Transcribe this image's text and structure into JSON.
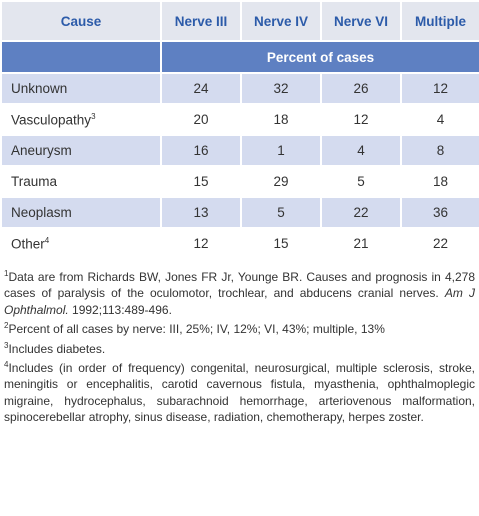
{
  "table": {
    "header": [
      "Cause",
      "Nerve III",
      "Nerve IV",
      "Nerve VI",
      "Multiple"
    ],
    "subheader": "Percent of cases",
    "rows": [
      {
        "cause": "Unknown",
        "values": [
          24,
          32,
          26,
          12
        ]
      },
      {
        "cause": "Vasculopathy",
        "note": "3",
        "values": [
          20,
          18,
          12,
          4
        ]
      },
      {
        "cause": "Aneurysm",
        "values": [
          16,
          1,
          4,
          8
        ]
      },
      {
        "cause": "Trauma",
        "values": [
          15,
          29,
          5,
          18
        ]
      },
      {
        "cause": "Neoplasm",
        "values": [
          13,
          5,
          22,
          36
        ]
      },
      {
        "cause": "Other",
        "note": "4",
        "values": [
          12,
          15,
          21,
          22
        ]
      }
    ]
  },
  "footnotes": [
    {
      "marker": "1",
      "parts": [
        "Data are from Richards BW, Jones FR Jr, Younge BR. Causes and prognosis in 4,278 cases of paralysis of the oculomotor, trochlear, and abducens cranial nerves. ",
        "Am J Ophthalmol.",
        " 1992;113:489-496."
      ]
    },
    {
      "marker": "2",
      "parts": [
        "Percent of all cases by nerve: III, 25%; IV, 12%; VI, 43%; multiple, 13%"
      ]
    },
    {
      "marker": "3",
      "parts": [
        "Includes diabetes."
      ]
    },
    {
      "marker": "4",
      "parts": [
        "Includes (in order of frequency) congenital, neurosurgical, multiple sclerosis, stroke, meningitis or encephalitis, carotid cavernous fistula, myasthenia, ophthalmoplegic migraine, hydrocephalus, subarachnoid hemorrhage, arteriovenous malformation, spinocerebellar atrophy, sinus disease, radiation, chemotherapy, herpes zoster."
      ]
    }
  ]
}
